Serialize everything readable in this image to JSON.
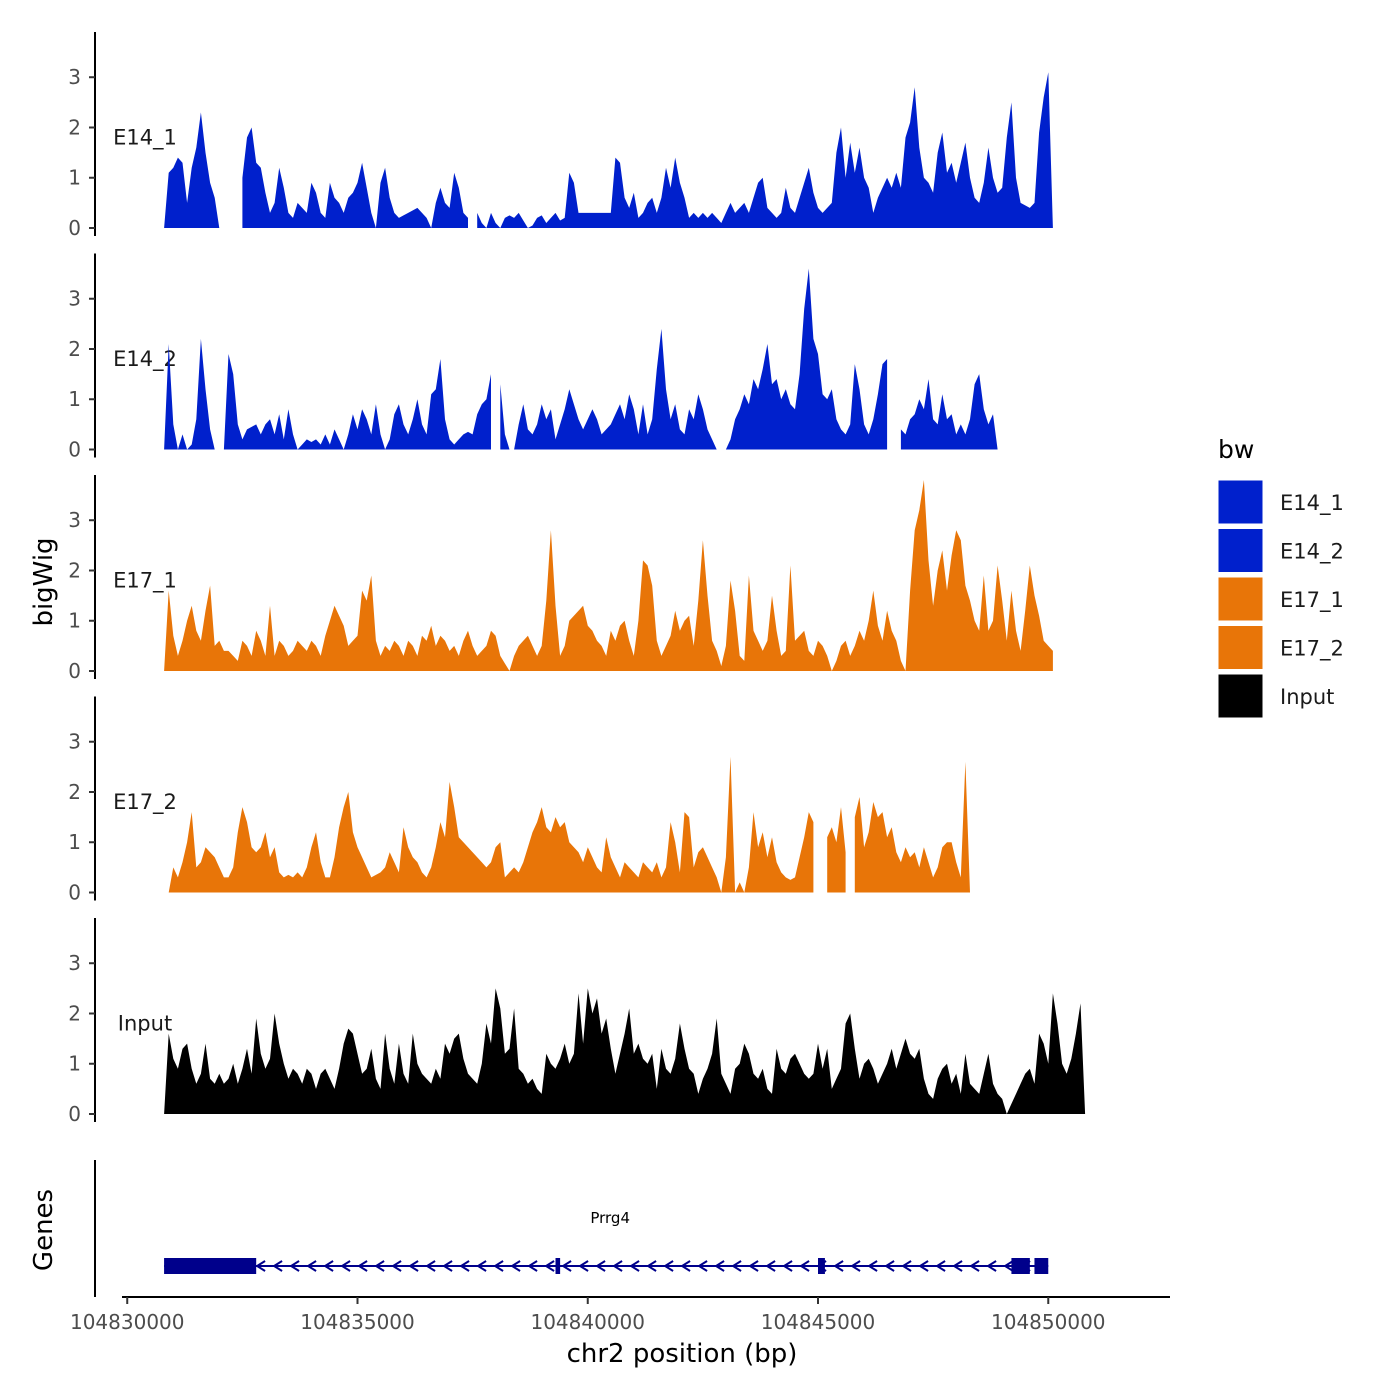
{
  "chart_data": {
    "type": "area",
    "ylabel": "bigWig",
    "xlabel": "chr2 position (bp)",
    "xlim": [
      104829300,
      104852600
    ],
    "ylim": [
      0,
      3.9
    ],
    "y_ticks": [
      0,
      1,
      2,
      3
    ],
    "y_tick_labels": [
      "0",
      "1",
      "2",
      "3"
    ],
    "x_ticks": [
      104830000,
      104835000,
      104840000,
      104845000,
      104850000
    ],
    "x_tick_labels": [
      "104830000",
      "104835000",
      "104840000",
      "104845000",
      "104850000"
    ],
    "x_step": 100,
    "legend": {
      "title": "bw",
      "position": "right",
      "entries": [
        {
          "label": "E14_1",
          "color": "#0020CC"
        },
        {
          "label": "E14_2",
          "color": "#0020CC"
        },
        {
          "label": "E17_1",
          "color": "#E87508"
        },
        {
          "label": "E17_2",
          "color": "#E87508"
        },
        {
          "label": "Input",
          "color": "#000000"
        }
      ]
    },
    "series": [
      {
        "name": "E14_1",
        "color": "#0020CC",
        "x_start": 104830800,
        "gaps": [
          [
            104832100,
            104832500
          ],
          [
            104837400,
            104837600
          ],
          [
            104840200,
            104840300
          ]
        ],
        "values": [
          0,
          1.1,
          1.2,
          1.4,
          1.3,
          0.5,
          1.2,
          1.6,
          2.3,
          1.5,
          0.9,
          0.6,
          0,
          0,
          0,
          0,
          0.3,
          1.0,
          1.8,
          2.0,
          1.3,
          1.2,
          0.7,
          0.3,
          0.5,
          1.2,
          0.8,
          0.3,
          0.2,
          0.5,
          0.4,
          0.3,
          0.9,
          0.7,
          0.3,
          0.2,
          0.9,
          0.6,
          0.5,
          0.3,
          0.6,
          0.7,
          0.9,
          1.3,
          0.8,
          0.3,
          0,
          0.9,
          1.2,
          0.6,
          0.3,
          0.2,
          0.25,
          0.3,
          0.35,
          0.4,
          0.3,
          0.2,
          0,
          0.5,
          0.8,
          0.5,
          0.4,
          1.1,
          0.8,
          0.3,
          0.2,
          0.25,
          0.3,
          0.1,
          0,
          0.3,
          0.1,
          0,
          0.2,
          0.25,
          0.2,
          0.3,
          0.15,
          0,
          0.05,
          0.2,
          0.25,
          0.1,
          0.2,
          0.3,
          0.15,
          0.2,
          1.1,
          0.9,
          0.3,
          0.3,
          0.3,
          0.3,
          0.3,
          0.3,
          0.3,
          0.3,
          1.4,
          1.3,
          0.6,
          0.4,
          0.7,
          0.2,
          0.3,
          0.5,
          0.6,
          0.3,
          0.6,
          1.2,
          0.8,
          1.4,
          0.9,
          0.6,
          0.2,
          0.3,
          0.2,
          0.3,
          0.2,
          0.3,
          0.2,
          0.1,
          0.3,
          0.5,
          0.3,
          0.4,
          0.5,
          0.3,
          0.6,
          0.9,
          1.0,
          0.4,
          0.3,
          0.2,
          0.3,
          0.8,
          0.4,
          0.3,
          0.6,
          0.9,
          1.2,
          0.7,
          0.4,
          0.3,
          0.4,
          0.5,
          1.5,
          2.0,
          1.0,
          1.7,
          1.1,
          1.6,
          1.0,
          0.8,
          0.3,
          0.6,
          0.8,
          1.0,
          0.8,
          1.1,
          0.8,
          1.8,
          2.1,
          2.8,
          1.6,
          1.0,
          0.9,
          0.7,
          1.5,
          1.9,
          1.1,
          1.3,
          0.9,
          1.3,
          1.7,
          1.0,
          0.6,
          0.5,
          0.9,
          1.6,
          1.0,
          0.7,
          0.8,
          1.8,
          2.5,
          1.0,
          0.5,
          0.45,
          0.4,
          0.5,
          1.9,
          2.6,
          3.1,
          0
        ]
      },
      {
        "name": "E14_2",
        "color": "#0020CC",
        "x_start": 104830800,
        "gaps": [
          [
            104837900,
            104838100
          ],
          [
            104844900,
            104845000
          ],
          [
            104846500,
            104846800
          ]
        ],
        "values": [
          0,
          2.1,
          0.5,
          0,
          0.3,
          0,
          0.1,
          0.6,
          2.2,
          1.2,
          0.4,
          0,
          0,
          0,
          1.9,
          1.5,
          0.5,
          0.2,
          0.4,
          0.45,
          0.5,
          0.3,
          0.5,
          0.6,
          0.3,
          0.7,
          0.2,
          0.8,
          0.3,
          0,
          0.1,
          0.2,
          0.15,
          0.2,
          0.1,
          0.3,
          0.1,
          0.4,
          0.2,
          0,
          0.3,
          0.7,
          0.4,
          0.8,
          0.6,
          0.3,
          0.9,
          0.3,
          0,
          0.2,
          0.7,
          0.9,
          0.5,
          0.3,
          0.6,
          1.0,
          0.5,
          0.3,
          1.1,
          1.2,
          1.8,
          0.6,
          0.2,
          0.1,
          0.2,
          0.3,
          0.35,
          0.3,
          0.7,
          0.9,
          1.0,
          1.5,
          1.5,
          1.3,
          0.3,
          0,
          0,
          0.5,
          0.9,
          0.4,
          0.3,
          0.5,
          0.9,
          0.6,
          0.8,
          0.2,
          0.5,
          0.8,
          1.2,
          0.9,
          0.6,
          0.4,
          0.6,
          0.8,
          0.6,
          0.3,
          0.4,
          0.5,
          0.7,
          0.9,
          0.6,
          1.1,
          0.8,
          0.3,
          0.9,
          0.3,
          0.6,
          1.6,
          2.4,
          1.2,
          0.6,
          0.9,
          0.4,
          0.3,
          0.8,
          0.6,
          1.1,
          0.8,
          0.4,
          0.2,
          0,
          0,
          0,
          0.2,
          0.6,
          0.8,
          1.1,
          0.9,
          1.4,
          1.2,
          1.6,
          2.1,
          1.3,
          1.4,
          1.0,
          1.2,
          0.9,
          0.8,
          1.5,
          2.8,
          3.6,
          2.2,
          1.9,
          1.1,
          1.0,
          1.2,
          0.6,
          0.4,
          0.3,
          0.5,
          1.7,
          1.2,
          0.5,
          0.3,
          0.6,
          1.1,
          1.7,
          1.8,
          1.3,
          0.9,
          0.4,
          0.3,
          0.6,
          0.7,
          1.0,
          0.8,
          1.4,
          0.6,
          0.5,
          1.1,
          0.6,
          0.7,
          0.3,
          0.5,
          0.3,
          0.6,
          1.3,
          1.5,
          0.8,
          0.5,
          0.7,
          0
        ]
      },
      {
        "name": "E17_1",
        "color": "#E87508",
        "x_start": 104830800,
        "gaps": [
          [
            104838000,
            104838100
          ],
          [
            104845800,
            104845900
          ]
        ],
        "values": [
          0,
          1.6,
          0.7,
          0.3,
          0.6,
          1.0,
          1.3,
          0.8,
          0.6,
          1.2,
          1.7,
          0.5,
          0.6,
          0.4,
          0.4,
          0.3,
          0.2,
          0.6,
          0.5,
          0.3,
          0.8,
          0.6,
          0.3,
          1.3,
          0.3,
          0.6,
          0.5,
          0.3,
          0.4,
          0.6,
          0.5,
          0.4,
          0.6,
          0.5,
          0.3,
          0.7,
          1.0,
          1.3,
          1.1,
          0.9,
          0.5,
          0.6,
          0.7,
          1.6,
          1.4,
          1.9,
          0.6,
          0.3,
          0.5,
          0.4,
          0.6,
          0.5,
          0.3,
          0.6,
          0.5,
          0.3,
          0.7,
          0.6,
          0.9,
          0.5,
          0.7,
          0.6,
          0.4,
          0.5,
          0.3,
          0.6,
          0.8,
          0.5,
          0.3,
          0.4,
          0.5,
          0.8,
          0.7,
          0.3,
          0.15,
          0,
          0.3,
          0.5,
          0.6,
          0.7,
          0.5,
          0.3,
          0.5,
          1.4,
          2.8,
          1.3,
          0.3,
          0.5,
          1.0,
          1.1,
          1.2,
          1.3,
          0.9,
          0.8,
          0.6,
          0.5,
          0.3,
          0.8,
          0.6,
          0.9,
          1.0,
          0.6,
          0.3,
          1.0,
          2.2,
          2.1,
          1.7,
          0.6,
          0.3,
          0.5,
          0.7,
          1.2,
          0.8,
          1.0,
          1.1,
          0.5,
          1.4,
          2.6,
          1.5,
          0.6,
          0.4,
          0.1,
          0.5,
          1.8,
          1.2,
          0.3,
          0.2,
          1.9,
          0.8,
          0.6,
          0.4,
          0.6,
          1.5,
          0.8,
          0.3,
          0.4,
          2.1,
          0.6,
          0.7,
          0.8,
          0.4,
          0.3,
          0.6,
          0.5,
          0.3,
          0,
          0.2,
          0.5,
          0.6,
          0.3,
          0.5,
          0.8,
          0.6,
          1.0,
          1.6,
          0.9,
          0.6,
          1.2,
          0.8,
          0.6,
          0.2,
          0,
          1.6,
          2.8,
          3.2,
          3.8,
          2.2,
          1.3,
          2.0,
          2.4,
          1.6,
          2.3,
          2.8,
          2.6,
          1.7,
          1.4,
          1.0,
          0.8,
          1.9,
          0.8,
          1.0,
          2.1,
          1.4,
          0.6,
          1.6,
          0.8,
          0.4,
          1.2,
          2.1,
          1.5,
          1.1,
          0.6,
          0.5,
          0.4
        ]
      },
      {
        "name": "E17_2",
        "color": "#E87508",
        "x_start": 104830900,
        "gaps": [
          [
            104844900,
            104845200
          ],
          [
            104845600,
            104845800
          ]
        ],
        "values": [
          0,
          0.5,
          0.3,
          0.6,
          1.0,
          1.6,
          0.5,
          0.6,
          0.9,
          0.8,
          0.7,
          0.5,
          0.3,
          0.3,
          0.5,
          1.2,
          1.7,
          1.4,
          0.9,
          0.8,
          0.9,
          1.2,
          0.7,
          0.9,
          0.4,
          0.3,
          0.35,
          0.3,
          0.4,
          0.3,
          0.5,
          0.9,
          1.2,
          0.6,
          0.3,
          0.3,
          0.7,
          1.3,
          1.7,
          2.0,
          1.2,
          0.9,
          0.7,
          0.5,
          0.3,
          0.35,
          0.4,
          0.5,
          0.8,
          0.6,
          0.4,
          1.3,
          0.9,
          0.7,
          0.6,
          0.4,
          0.3,
          0.5,
          0.9,
          1.4,
          1.1,
          2.2,
          1.7,
          1.1,
          1.0,
          0.9,
          0.8,
          0.7,
          0.6,
          0.5,
          0.6,
          0.9,
          1.0,
          0.3,
          0.4,
          0.5,
          0.4,
          0.6,
          0.9,
          1.2,
          1.4,
          1.7,
          1.3,
          1.2,
          1.5,
          1.3,
          1.4,
          1.0,
          0.9,
          0.8,
          0.6,
          0.9,
          0.7,
          0.5,
          0.4,
          1.1,
          0.7,
          0.5,
          0.3,
          0.6,
          0.5,
          0.4,
          0.3,
          0.6,
          0.5,
          0.4,
          0.6,
          0.3,
          0.5,
          1.4,
          1.0,
          0.4,
          1.6,
          1.5,
          0.5,
          0.8,
          0.9,
          0.7,
          0.5,
          0.3,
          0,
          0.7,
          2.7,
          0,
          0.2,
          0,
          0.5,
          1.6,
          0.9,
          1.2,
          0.7,
          1.1,
          0.6,
          0.4,
          0.3,
          0.25,
          0.3,
          0.7,
          1.1,
          1.6,
          1.4,
          0.9,
          1.3,
          1.1,
          1.3,
          1.0,
          1.7,
          0.8,
          1.1,
          1.5,
          1.9,
          0.9,
          1.2,
          1.8,
          1.5,
          1.6,
          1.1,
          1.3,
          0.8,
          0.6,
          0.9,
          0.7,
          0.8,
          0.5,
          0.9,
          0.6,
          0.3,
          0.5,
          0.9,
          1.0,
          1.0,
          0.6,
          0.3,
          2.6,
          0
        ]
      },
      {
        "name": "Input",
        "color": "#000000",
        "x_start": 104830800,
        "gaps": [],
        "values": [
          0,
          1.6,
          1.1,
          0.9,
          1.3,
          1.4,
          0.9,
          0.6,
          0.8,
          1.4,
          0.7,
          0.6,
          0.8,
          0.6,
          0.7,
          1.0,
          0.6,
          0.9,
          1.3,
          0.8,
          1.9,
          1.2,
          0.9,
          1.1,
          2.0,
          1.4,
          1.0,
          0.7,
          0.9,
          0.8,
          0.6,
          0.9,
          0.8,
          0.5,
          0.8,
          0.9,
          0.7,
          0.5,
          0.9,
          1.4,
          1.7,
          1.6,
          1.2,
          0.8,
          0.9,
          1.3,
          0.7,
          0.5,
          1.6,
          0.9,
          0.6,
          1.4,
          0.8,
          0.6,
          1.6,
          1.0,
          0.8,
          0.7,
          0.6,
          0.9,
          0.7,
          1.4,
          1.2,
          1.5,
          1.6,
          1.1,
          0.8,
          0.7,
          0.6,
          1.0,
          1.8,
          1.4,
          2.5,
          2.1,
          1.2,
          1.3,
          2.1,
          0.9,
          0.8,
          0.6,
          0.7,
          0.5,
          0.4,
          1.2,
          1.0,
          0.9,
          1.1,
          1.4,
          1.0,
          1.2,
          2.4,
          1.4,
          2.5,
          2.0,
          2.3,
          1.6,
          1.9,
          1.3,
          0.8,
          1.2,
          1.6,
          2.1,
          1.2,
          1.4,
          1.1,
          1.0,
          1.2,
          0.5,
          1.3,
          0.9,
          0.8,
          1.1,
          1.8,
          1.3,
          0.9,
          0.8,
          0.4,
          0.7,
          0.9,
          1.2,
          1.9,
          0.8,
          0.6,
          0.4,
          0.9,
          1.0,
          1.4,
          1.2,
          0.8,
          0.7,
          0.9,
          0.5,
          0.4,
          1.3,
          0.9,
          0.8,
          1.1,
          1.2,
          1.0,
          0.8,
          0.7,
          0.8,
          1.4,
          0.9,
          1.3,
          0.5,
          0.7,
          0.9,
          1.8,
          2.0,
          1.3,
          0.7,
          1.0,
          1.1,
          0.9,
          0.6,
          0.8,
          1.0,
          1.3,
          0.9,
          1.2,
          1.5,
          1.2,
          1.1,
          1.3,
          0.7,
          0.4,
          0.3,
          0.7,
          0.9,
          1.0,
          0.6,
          0.8,
          0.4,
          1.2,
          0.6,
          0.5,
          0.4,
          0.8,
          1.2,
          0.6,
          0.4,
          0.3,
          0,
          0.2,
          0.4,
          0.6,
          0.8,
          0.9,
          0.6,
          1.6,
          1.4,
          1.0,
          2.4,
          1.8,
          1.0,
          0.8,
          1.1,
          1.6,
          2.2,
          0
        ]
      }
    ],
    "genes": {
      "ylabel": "Genes",
      "items": [
        {
          "name": "Prrg4",
          "strand": "-",
          "start": 104830800,
          "end": 104850000,
          "exons": [
            [
              104830800,
              104832800
            ],
            [
              104839300,
              104839400
            ],
            [
              104845000,
              104845150
            ],
            [
              104849200,
              104849600
            ],
            [
              104849700,
              104850000
            ]
          ],
          "color": "#00008B"
        }
      ]
    }
  }
}
